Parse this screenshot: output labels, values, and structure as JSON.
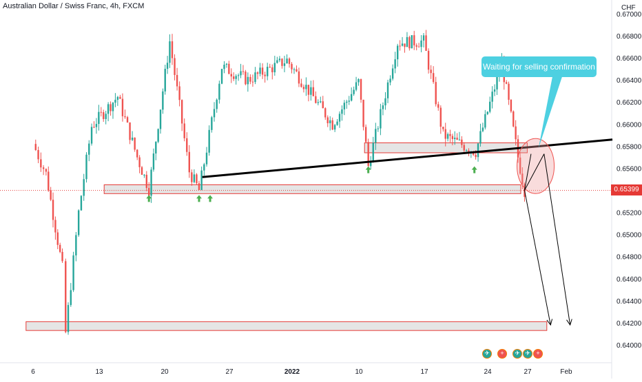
{
  "header": {
    "title": "Australian Dollar / Swiss Franc, 4h, FXCM"
  },
  "currency": "CHF",
  "callout": {
    "text": "Waiting for selling confirmation"
  },
  "last_price": "0.65399",
  "colors": {
    "up": "#26a69a",
    "down": "#ef5350",
    "zone_fill": "#dcdcdc",
    "zone_border": "#e53935",
    "callout_bg": "#4dd0e1",
    "price_tag": "#e53935",
    "trendline": "#000000",
    "marker": "#4caf50"
  },
  "event_icons": [
    "flag-au-icon",
    "flag-ch-icon",
    "flag-au-icon",
    "flag-au-icon",
    "flag-ch-icon"
  ],
  "chart_data": {
    "type": "candlestick",
    "ylim": [
      0.64,
      0.67
    ],
    "yticks": [
      "0.66800",
      "0.66600",
      "0.66400",
      "0.66200",
      "0.66000",
      "0.65800",
      "0.65600",
      "0.65200",
      "0.65000",
      "0.64800",
      "0.64600",
      "0.64400",
      "0.64200",
      "0.64000"
    ],
    "top_tick_partial": "0.67000",
    "xlabels": [
      "6",
      "13",
      "20",
      "27",
      "2022",
      "10",
      "17",
      "24",
      "27",
      "Feb"
    ],
    "xlabel": "",
    "ylabel": "",
    "zones": [
      {
        "name": "support-zone",
        "low": 0.6537,
        "high": 0.6545,
        "from": 1.6,
        "to": 8.0
      },
      {
        "name": "resistance-zone",
        "low": 0.6574,
        "high": 0.6583,
        "from": 5.6,
        "to": 8.1
      },
      {
        "name": "target-zone",
        "low": 0.6413,
        "high": 0.6421,
        "from": 0.4,
        "to": 8.4
      }
    ],
    "trendline": {
      "from": [
        2.6,
        0.6552
      ],
      "to": [
        8.9,
        0.6586
      ]
    },
    "last_price_line": 0.65399,
    "swing_lows": [
      0.6543,
      0.654,
      0.6534,
      0.647,
      0.6411,
      0.6522,
      0.6535,
      0.6562,
      0.6548,
      0.6586,
      0.6614,
      0.6597,
      0.6605,
      0.6618,
      0.663,
      0.6625,
      0.6618,
      0.661,
      0.6587,
      0.6571
    ],
    "key_prices": [
      {
        "x": 0.0,
        "y": 0.6582
      },
      {
        "x": 0.2,
        "y": 0.6555
      },
      {
        "x": 0.45,
        "y": 0.647
      },
      {
        "x": 0.5,
        "y": 0.6411
      },
      {
        "x": 0.7,
        "y": 0.652
      },
      {
        "x": 0.9,
        "y": 0.6598
      },
      {
        "x": 1.3,
        "y": 0.6625
      },
      {
        "x": 1.6,
        "y": 0.657
      },
      {
        "x": 1.78,
        "y": 0.6541
      },
      {
        "x": 2.1,
        "y": 0.6675
      },
      {
        "x": 2.4,
        "y": 0.6557
      },
      {
        "x": 2.55,
        "y": 0.654
      },
      {
        "x": 2.9,
        "y": 0.6652
      },
      {
        "x": 3.3,
        "y": 0.664
      },
      {
        "x": 3.9,
        "y": 0.6658
      },
      {
        "x": 4.6,
        "y": 0.66
      },
      {
        "x": 5.0,
        "y": 0.6638
      },
      {
        "x": 5.15,
        "y": 0.6562
      },
      {
        "x": 5.6,
        "y": 0.6674
      },
      {
        "x": 6.0,
        "y": 0.6675
      },
      {
        "x": 6.3,
        "y": 0.659
      },
      {
        "x": 6.8,
        "y": 0.6575
      },
      {
        "x": 7.2,
        "y": 0.6655
      },
      {
        "x": 7.45,
        "y": 0.657
      },
      {
        "x": 7.55,
        "y": 0.654
      }
    ],
    "projection_arrows": [
      {
        "from": [
          7.55,
          0.654
        ],
        "to": [
          7.95,
          0.6418
        ]
      },
      {
        "from": [
          7.85,
          0.6573
        ],
        "to": [
          8.25,
          0.6418
        ]
      }
    ],
    "up_markers": [
      1.78,
      2.55,
      2.72,
      5.15,
      6.78
    ]
  }
}
